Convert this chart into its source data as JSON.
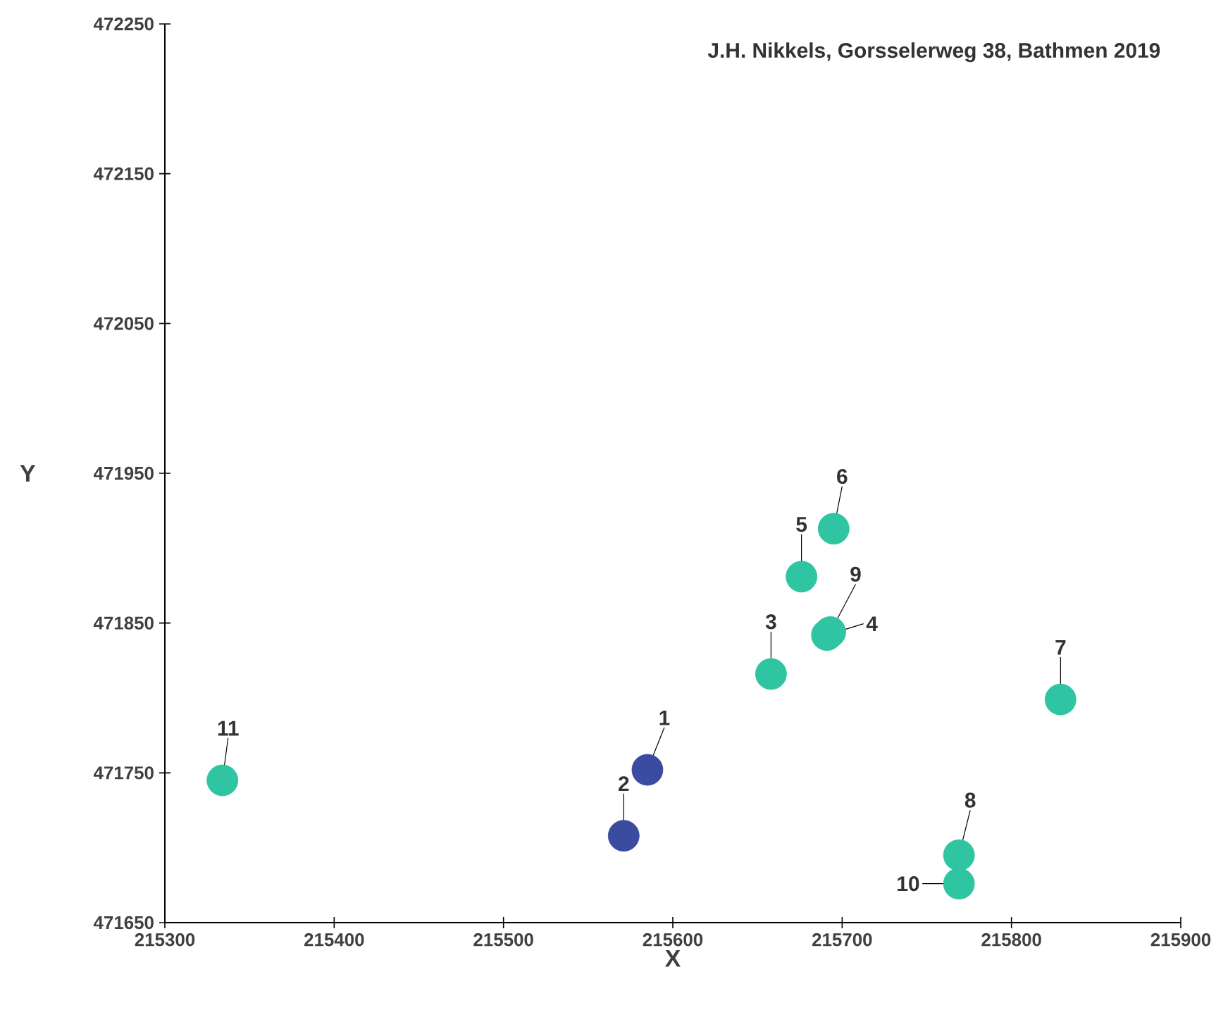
{
  "chart_data": {
    "type": "scatter",
    "title": "J.H. Nikkels, Gorsselerweg 38, Bathmen 2019",
    "xlabel": "X",
    "ylabel": "Y",
    "xlim": [
      215300,
      215900
    ],
    "ylim": [
      471650,
      472250
    ],
    "xticks": [
      215300,
      215400,
      215500,
      215600,
      215700,
      215800,
      215900
    ],
    "yticks": [
      471650,
      471750,
      471850,
      471950,
      472050,
      472150,
      472250
    ],
    "marker": "circle",
    "grid": false,
    "series": [
      {
        "color": "#3b4ca0",
        "x": [
          215585,
          215571
        ],
        "values": [
          471752,
          471708
        ]
      },
      {
        "color": "#2fc4a2",
        "x": [
          215658,
          215691,
          215676,
          215695,
          215829,
          215769,
          215693,
          215769,
          215334
        ],
        "values": [
          471816,
          471842,
          471881,
          471913,
          471799,
          471695,
          471844,
          471676,
          471745
        ]
      }
    ],
    "annotations": [
      {
        "text": "1",
        "x": 215585,
        "y": 471752
      },
      {
        "text": "2",
        "x": 215571,
        "y": 471708
      },
      {
        "text": "3",
        "x": 215658,
        "y": 471816
      },
      {
        "text": "4",
        "x": 215691,
        "y": 471842
      },
      {
        "text": "5",
        "x": 215676,
        "y": 471881
      },
      {
        "text": "6",
        "x": 215695,
        "y": 471913
      },
      {
        "text": "7",
        "x": 215829,
        "y": 471799
      },
      {
        "text": "8",
        "x": 215769,
        "y": 471695
      },
      {
        "text": "9",
        "x": 215693,
        "y": 471844
      },
      {
        "text": "10",
        "x": 215769,
        "y": 471676
      },
      {
        "text": "11",
        "x": 215334,
        "y": 471745
      }
    ]
  }
}
